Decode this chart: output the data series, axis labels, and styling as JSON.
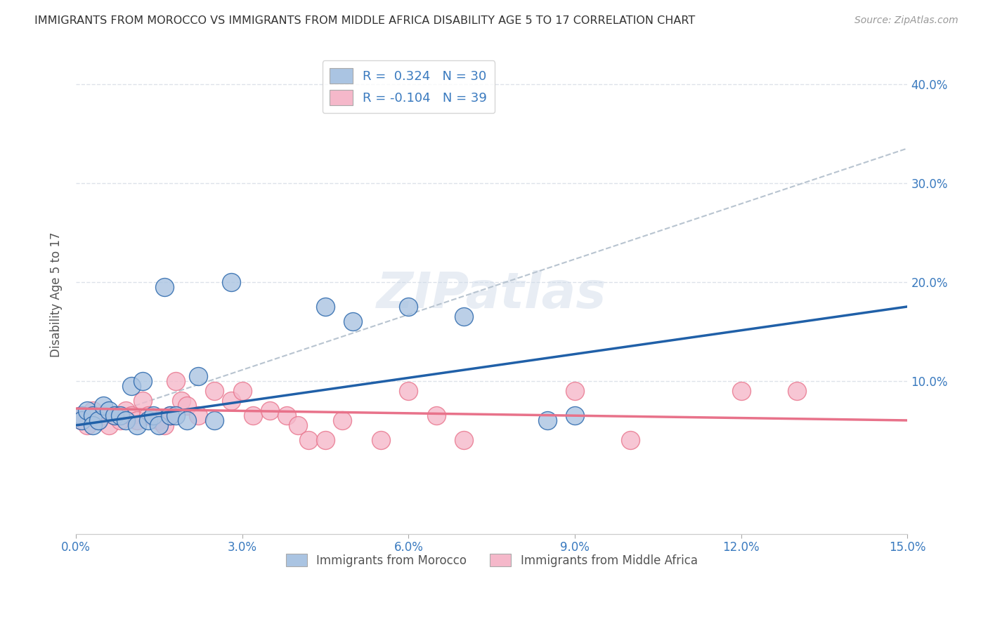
{
  "title": "IMMIGRANTS FROM MOROCCO VS IMMIGRANTS FROM MIDDLE AFRICA DISABILITY AGE 5 TO 17 CORRELATION CHART",
  "source": "Source: ZipAtlas.com",
  "ylabel": "Disability Age 5 to 17",
  "legend_label_1": "Immigrants from Morocco",
  "legend_label_2": "Immigrants from Middle Africa",
  "R1": 0.324,
  "N1": 30,
  "R2": -0.104,
  "N2": 39,
  "color_morocco": "#aac4e2",
  "color_africa": "#f5b8ca",
  "color_morocco_line": "#2060a8",
  "color_africa_line": "#e8728a",
  "color_dashed": "#b8c4d0",
  "xlim": [
    0.0,
    0.15
  ],
  "ylim": [
    -0.055,
    0.43
  ],
  "xticks": [
    0.0,
    0.03,
    0.06,
    0.09,
    0.12,
    0.15
  ],
  "xtick_labels": [
    "0.0%",
    "3.0%",
    "6.0%",
    "9.0%",
    "12.0%",
    "15.0%"
  ],
  "yticks_right": [
    0.1,
    0.2,
    0.3,
    0.4
  ],
  "ytick_labels_right": [
    "10.0%",
    "20.0%",
    "30.0%",
    "40.0%"
  ],
  "morocco_x": [
    0.001,
    0.001,
    0.002,
    0.003,
    0.003,
    0.004,
    0.005,
    0.006,
    0.007,
    0.008,
    0.009,
    0.01,
    0.011,
    0.012,
    0.013,
    0.014,
    0.015,
    0.016,
    0.017,
    0.018,
    0.02,
    0.022,
    0.025,
    0.028,
    0.045,
    0.05,
    0.06,
    0.07,
    0.085,
    0.09
  ],
  "morocco_y": [
    0.065,
    0.06,
    0.07,
    0.065,
    0.055,
    0.06,
    0.075,
    0.07,
    0.065,
    0.065,
    0.06,
    0.095,
    0.055,
    0.1,
    0.06,
    0.065,
    0.055,
    0.195,
    0.065,
    0.065,
    0.06,
    0.105,
    0.06,
    0.2,
    0.175,
    0.16,
    0.175,
    0.165,
    0.06,
    0.065
  ],
  "africa_x": [
    0.001,
    0.001,
    0.002,
    0.003,
    0.004,
    0.005,
    0.006,
    0.007,
    0.008,
    0.009,
    0.01,
    0.011,
    0.012,
    0.013,
    0.015,
    0.016,
    0.017,
    0.018,
    0.019,
    0.02,
    0.022,
    0.025,
    0.028,
    0.03,
    0.032,
    0.035,
    0.038,
    0.04,
    0.042,
    0.045,
    0.048,
    0.055,
    0.06,
    0.065,
    0.07,
    0.09,
    0.1,
    0.12,
    0.13
  ],
  "africa_y": [
    0.065,
    0.06,
    0.055,
    0.07,
    0.06,
    0.065,
    0.055,
    0.065,
    0.06,
    0.07,
    0.065,
    0.06,
    0.08,
    0.065,
    0.06,
    0.055,
    0.065,
    0.1,
    0.08,
    0.075,
    0.065,
    0.09,
    0.08,
    0.09,
    0.065,
    0.07,
    0.065,
    0.055,
    0.04,
    0.04,
    0.06,
    0.04,
    0.09,
    0.065,
    0.04,
    0.09,
    0.04,
    0.09,
    0.09
  ],
  "dashed_line_x": [
    0.0,
    0.15
  ],
  "dashed_line_y": [
    0.055,
    0.335
  ],
  "blue_line_x": [
    0.0,
    0.15
  ],
  "blue_line_y": [
    0.055,
    0.175
  ],
  "pink_line_x": [
    0.0,
    0.15
  ],
  "pink_line_y": [
    0.072,
    0.06
  ],
  "watermark": "ZIPatlas",
  "background_color": "#ffffff",
  "grid_color": "#dde2ea"
}
